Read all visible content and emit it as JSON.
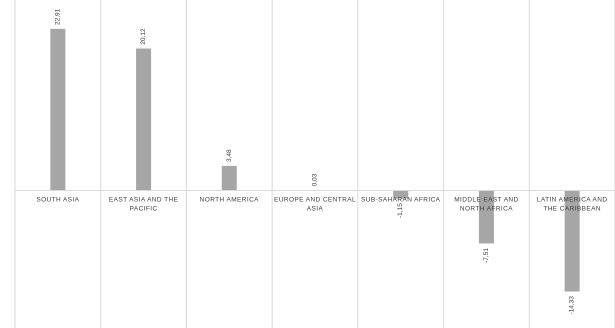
{
  "chart_data": {
    "type": "bar",
    "title": "",
    "xlabel": "",
    "ylabel": "",
    "grid": "vertical category separators",
    "colors": {
      "bar": "#a6a6a6",
      "grid": "#d9d9d9",
      "text": "#404040"
    },
    "categories": [
      [
        "SOUTH ASIA"
      ],
      [
        "EAST ASIA AND THE",
        "PACIFIC"
      ],
      [
        "NORTH AMERICA"
      ],
      [
        "EUROPE AND CENTRAL",
        "ASIA"
      ],
      [
        "SUB-SAHARAN AFRICA"
      ],
      [
        "MIDDLE EAST AND",
        "NORTH AFRICA"
      ],
      [
        "LATIN AMERICA AND",
        "THE CARIBBEAN"
      ]
    ],
    "values": [
      22.91,
      20.12,
      3.48,
      0.03,
      -1.15,
      -7.51,
      -14.33
    ],
    "data_labels": [
      "22,91",
      "20,12",
      "3,48",
      "0,03",
      "-1,15",
      "-7,51",
      "-14,33"
    ],
    "ylim": [
      -19.5,
      27
    ]
  }
}
